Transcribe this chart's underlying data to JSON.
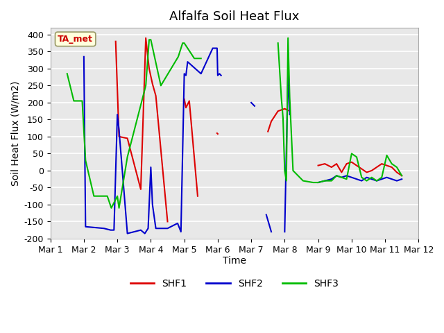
{
  "title": "Alfalfa Soil Heat Flux",
  "xlabel": "Time",
  "ylabel": "Soil Heat Flux (W/m2)",
  "ylim": [
    -200,
    420
  ],
  "yticks": [
    -200,
    -150,
    -100,
    -50,
    0,
    50,
    100,
    150,
    200,
    250,
    300,
    350,
    400
  ],
  "bg_color": "#e8e8e8",
  "annotation_label": "TA_met",
  "annotation_color": "#cc0000",
  "annotation_bg": "#ffffdd",
  "SHF1_color": "#dd0000",
  "SHF2_color": "#0000cc",
  "SHF3_color": "#00bb00",
  "SHF1_x": [
    2.0,
    2.8,
    2.95,
    3.05,
    3.3,
    3.7,
    3.85,
    3.95,
    4.05,
    4.15,
    4.5,
    4.82,
    5.0,
    5.05,
    5.15,
    5.4,
    5.85,
    5.98,
    6.0,
    6.08,
    6.5,
    7.4,
    7.5,
    7.6,
    7.8,
    8.0,
    8.1,
    8.85,
    9.0,
    9.2,
    9.4,
    9.55,
    9.7,
    9.85,
    10.0,
    10.15,
    10.3,
    10.45,
    10.6,
    10.75,
    10.9,
    11.05,
    11.2,
    11.35,
    11.5
  ],
  "SHF1_y": [
    null,
    null,
    380,
    100,
    95,
    -55,
    390,
    300,
    255,
    220,
    -150,
    null,
    210,
    185,
    205,
    -75,
    null,
    110,
    108,
    null,
    null,
    null,
    115,
    145,
    175,
    182,
    177,
    null,
    15,
    20,
    10,
    20,
    -5,
    20,
    25,
    15,
    5,
    -5,
    0,
    10,
    20,
    15,
    10,
    -5,
    -15
  ],
  "SHF2_x": [
    1.95,
    2.0,
    2.05,
    2.6,
    2.8,
    2.9,
    3.0,
    3.05,
    3.3,
    3.7,
    3.82,
    3.92,
    4.0,
    4.05,
    4.15,
    4.5,
    4.8,
    4.9,
    5.0,
    5.05,
    5.1,
    5.5,
    5.85,
    5.98,
    6.0,
    6.05,
    6.1,
    6.3,
    6.7,
    7.0,
    7.1,
    7.3,
    7.45,
    7.6,
    7.85,
    8.0,
    8.05,
    8.1,
    8.15,
    8.25,
    8.55,
    8.85,
    9.0,
    9.2,
    9.4,
    9.55,
    9.7,
    9.85,
    10.0,
    10.15,
    10.3,
    10.45,
    10.6,
    10.75,
    10.9,
    11.05,
    11.2,
    11.35,
    11.5
  ],
  "SHF2_y": [
    null,
    335,
    -165,
    -170,
    -175,
    -175,
    165,
    120,
    -185,
    -175,
    -185,
    -170,
    10,
    -100,
    -170,
    -170,
    -155,
    -180,
    285,
    280,
    320,
    285,
    360,
    360,
    280,
    285,
    280,
    null,
    null,
    200,
    190,
    null,
    -130,
    -180,
    null,
    -180,
    55,
    290,
    165,
    null,
    null,
    null,
    -35,
    -30,
    -25,
    -15,
    -20,
    -15,
    -20,
    -25,
    -30,
    -20,
    -25,
    -30,
    -25,
    -20,
    -25,
    -30,
    -25
  ],
  "SHF3_x": [
    1.5,
    1.7,
    1.95,
    2.05,
    2.3,
    2.7,
    2.82,
    3.0,
    3.05,
    3.3,
    3.85,
    3.95,
    4.0,
    4.3,
    4.82,
    4.95,
    5.0,
    5.3,
    5.5,
    5.65,
    7.8,
    7.9,
    7.95,
    8.0,
    8.05,
    8.1,
    8.15,
    8.25,
    8.55,
    8.85,
    9.0,
    9.2,
    9.4,
    9.55,
    9.7,
    9.85,
    10.0,
    10.15,
    10.3,
    10.45,
    10.6,
    10.75,
    10.9,
    11.05,
    11.2,
    11.35,
    11.5
  ],
  "SHF3_y": [
    285,
    205,
    205,
    30,
    -75,
    -75,
    -110,
    -75,
    -110,
    40,
    250,
    385,
    385,
    250,
    335,
    375,
    375,
    330,
    330,
    null,
    375,
    215,
    155,
    0,
    -30,
    390,
    215,
    0,
    -30,
    -35,
    -35,
    -30,
    -30,
    -15,
    -20,
    -25,
    50,
    40,
    -20,
    -30,
    -20,
    -30,
    -20,
    45,
    20,
    10,
    -15
  ]
}
